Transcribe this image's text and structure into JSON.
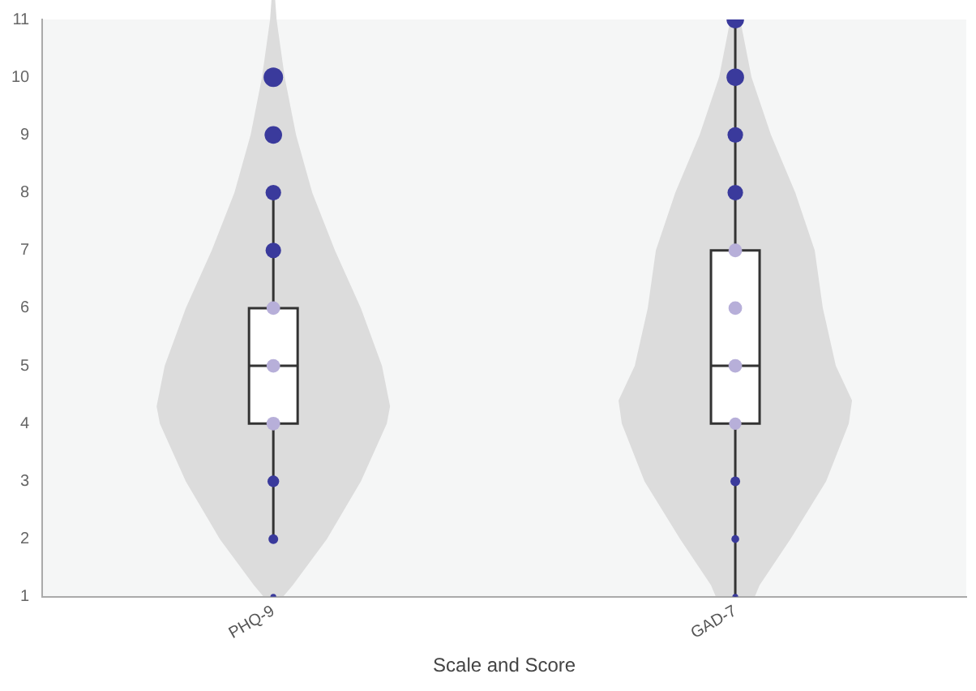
{
  "chart_data": {
    "type": "box",
    "categories": [
      "PHQ-9",
      "GAD-7"
    ],
    "xlabel": "Scale and Score",
    "ylim": [
      1,
      11
    ],
    "yticks": [
      1,
      2,
      3,
      4,
      5,
      6,
      7,
      8,
      9,
      10,
      11
    ],
    "grid": false,
    "legend": false,
    "boxes": [
      {
        "low": 2,
        "q1": 4,
        "median": 5,
        "q3": 6,
        "high": 8
      },
      {
        "low": 1,
        "q1": 4,
        "median": 5,
        "q3": 7,
        "high": 11
      }
    ],
    "series": [
      {
        "type": "bubble",
        "x": [
          "PHQ-9",
          "PHQ-9",
          "PHQ-9",
          "PHQ-9",
          "PHQ-9",
          "PHQ-9",
          "PHQ-9",
          "PHQ-9",
          "PHQ-9",
          "PHQ-9",
          "GAD-7",
          "GAD-7",
          "GAD-7",
          "GAD-7",
          "GAD-7",
          "GAD-7",
          "GAD-7",
          "GAD-7",
          "GAD-7",
          "GAD-7",
          "GAD-7"
        ],
        "values": [
          1,
          2,
          3,
          4,
          5,
          6,
          7,
          8,
          9,
          10,
          1,
          2,
          3,
          4,
          5,
          6,
          7,
          8,
          9,
          10,
          11
        ],
        "sizes": [
          0.09,
          0.25,
          0.36,
          0.49,
          0.49,
          0.49,
          0.64,
          0.64,
          0.81,
          1,
          0.09,
          0.16,
          0.25,
          0.4,
          0.49,
          0.49,
          0.49,
          0.64,
          0.64,
          0.81,
          0.81
        ],
        "colors": [
          "#3a3a9c",
          "#3a3a9c",
          "#3a3a9c",
          "#b7afd9",
          "#b7afd9",
          "#b7afd9",
          "#3a3a9c",
          "#3a3a9c",
          "#3a3a9c",
          "#3a3a9c",
          "#3a3a9c",
          "#3a3a9c",
          "#3a3a9c",
          "#b7afd9",
          "#b7afd9",
          "#b7afd9",
          "#b7afd9",
          "#3a3a9c",
          "#3a3a9c",
          "#3a3a9c",
          "#3a3a9c"
        ]
      }
    ]
  }
}
